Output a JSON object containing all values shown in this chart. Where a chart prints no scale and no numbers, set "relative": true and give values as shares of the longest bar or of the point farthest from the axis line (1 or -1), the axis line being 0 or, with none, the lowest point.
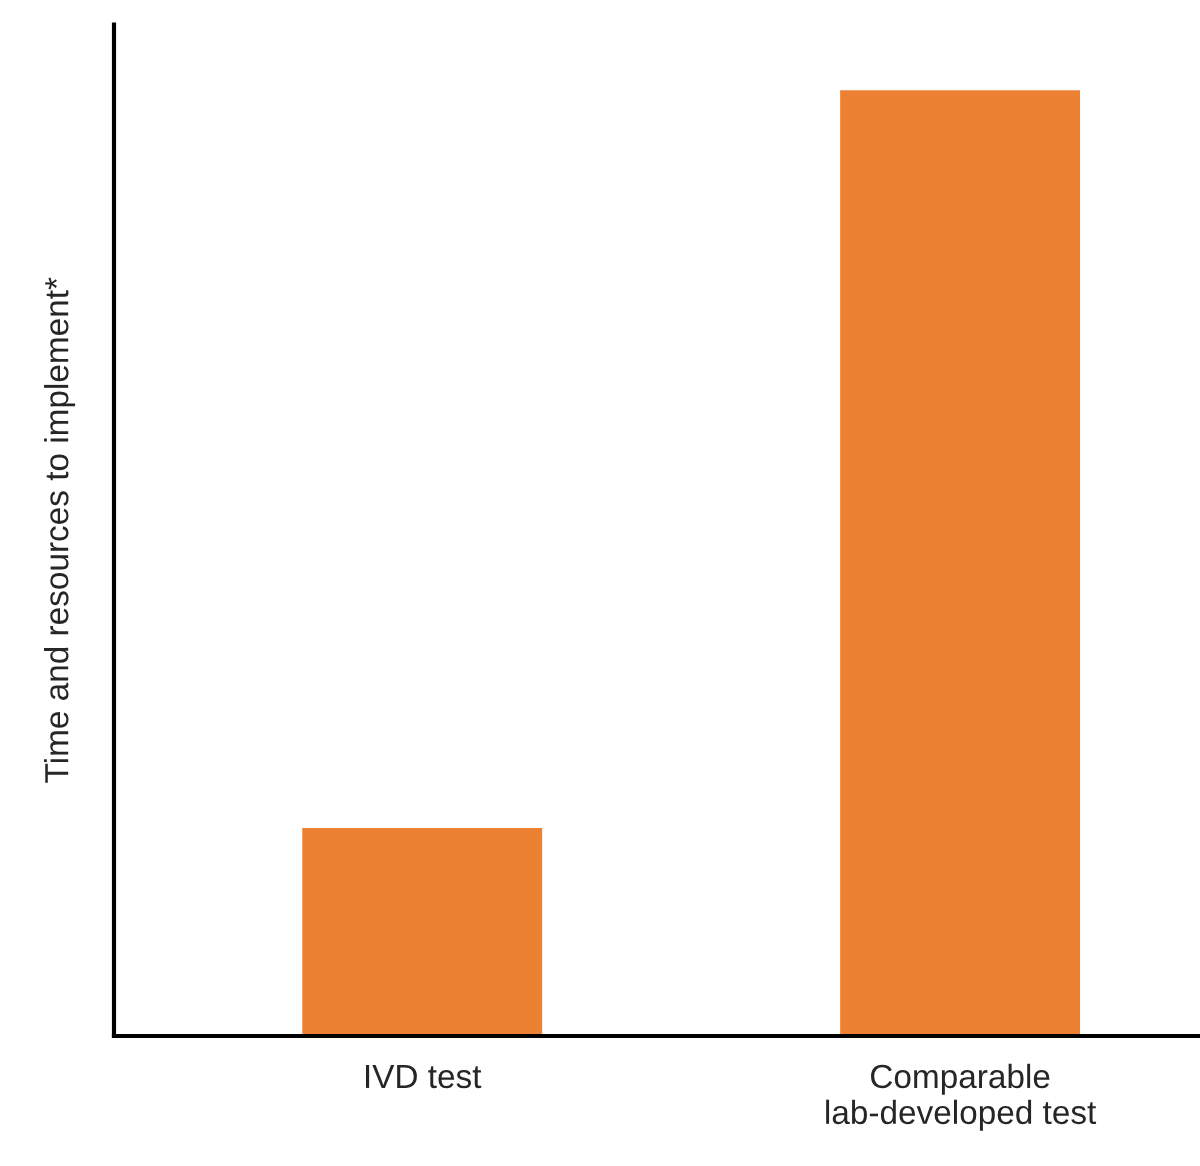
{
  "chart_data": {
    "type": "bar",
    "relative": true,
    "ylabel": "Time and resources to implement*",
    "categories": [
      "IVD test",
      "Comparable\nlab-developed test"
    ],
    "values": [
      0.22,
      1
    ],
    "color": "#ec8133"
  }
}
